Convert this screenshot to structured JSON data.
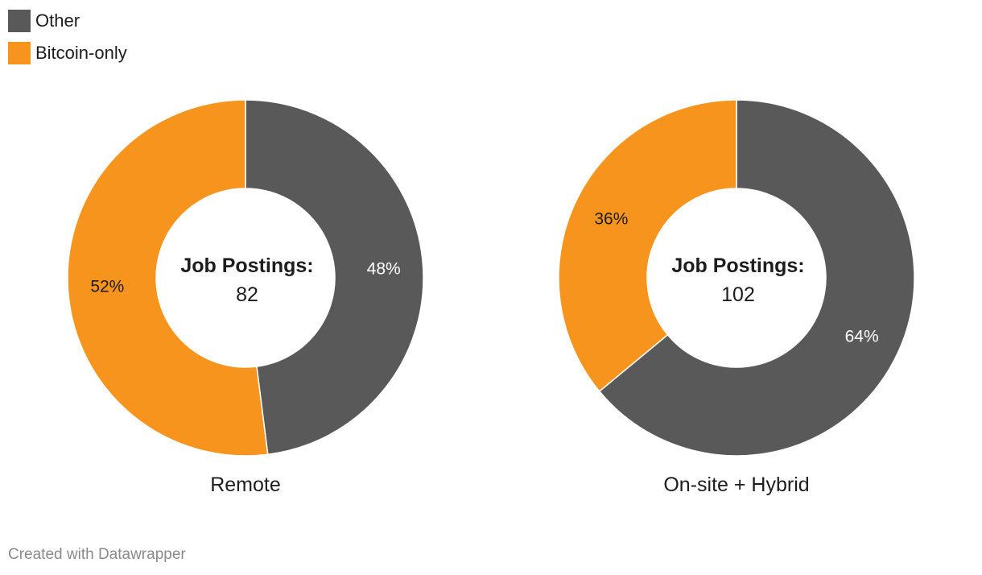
{
  "legend": [
    {
      "label": "Other",
      "color": "#595959"
    },
    {
      "label": "Bitcoin-only",
      "color": "#f7941d"
    }
  ],
  "chart_data": [
    {
      "type": "pie",
      "title": "Remote",
      "center_label": "Job Postings:",
      "center_value": "82",
      "slices": [
        {
          "label": "Other",
          "value": 48,
          "display": "48%",
          "color": "#595959",
          "label_color": "#ffffff"
        },
        {
          "label": "Bitcoin-only",
          "value": 52,
          "display": "52%",
          "color": "#f7941d",
          "label_color": "#1d1d1d"
        }
      ]
    },
    {
      "type": "pie",
      "title": "On-site + Hybrid",
      "center_label": "Job Postings:",
      "center_value": "102",
      "slices": [
        {
          "label": "Other",
          "value": 64,
          "display": "64%",
          "color": "#595959",
          "label_color": "#ffffff"
        },
        {
          "label": "Bitcoin-only",
          "value": 36,
          "display": "36%",
          "color": "#f7941d",
          "label_color": "#1d1d1d"
        }
      ]
    }
  ],
  "footer": "Created with Datawrapper"
}
